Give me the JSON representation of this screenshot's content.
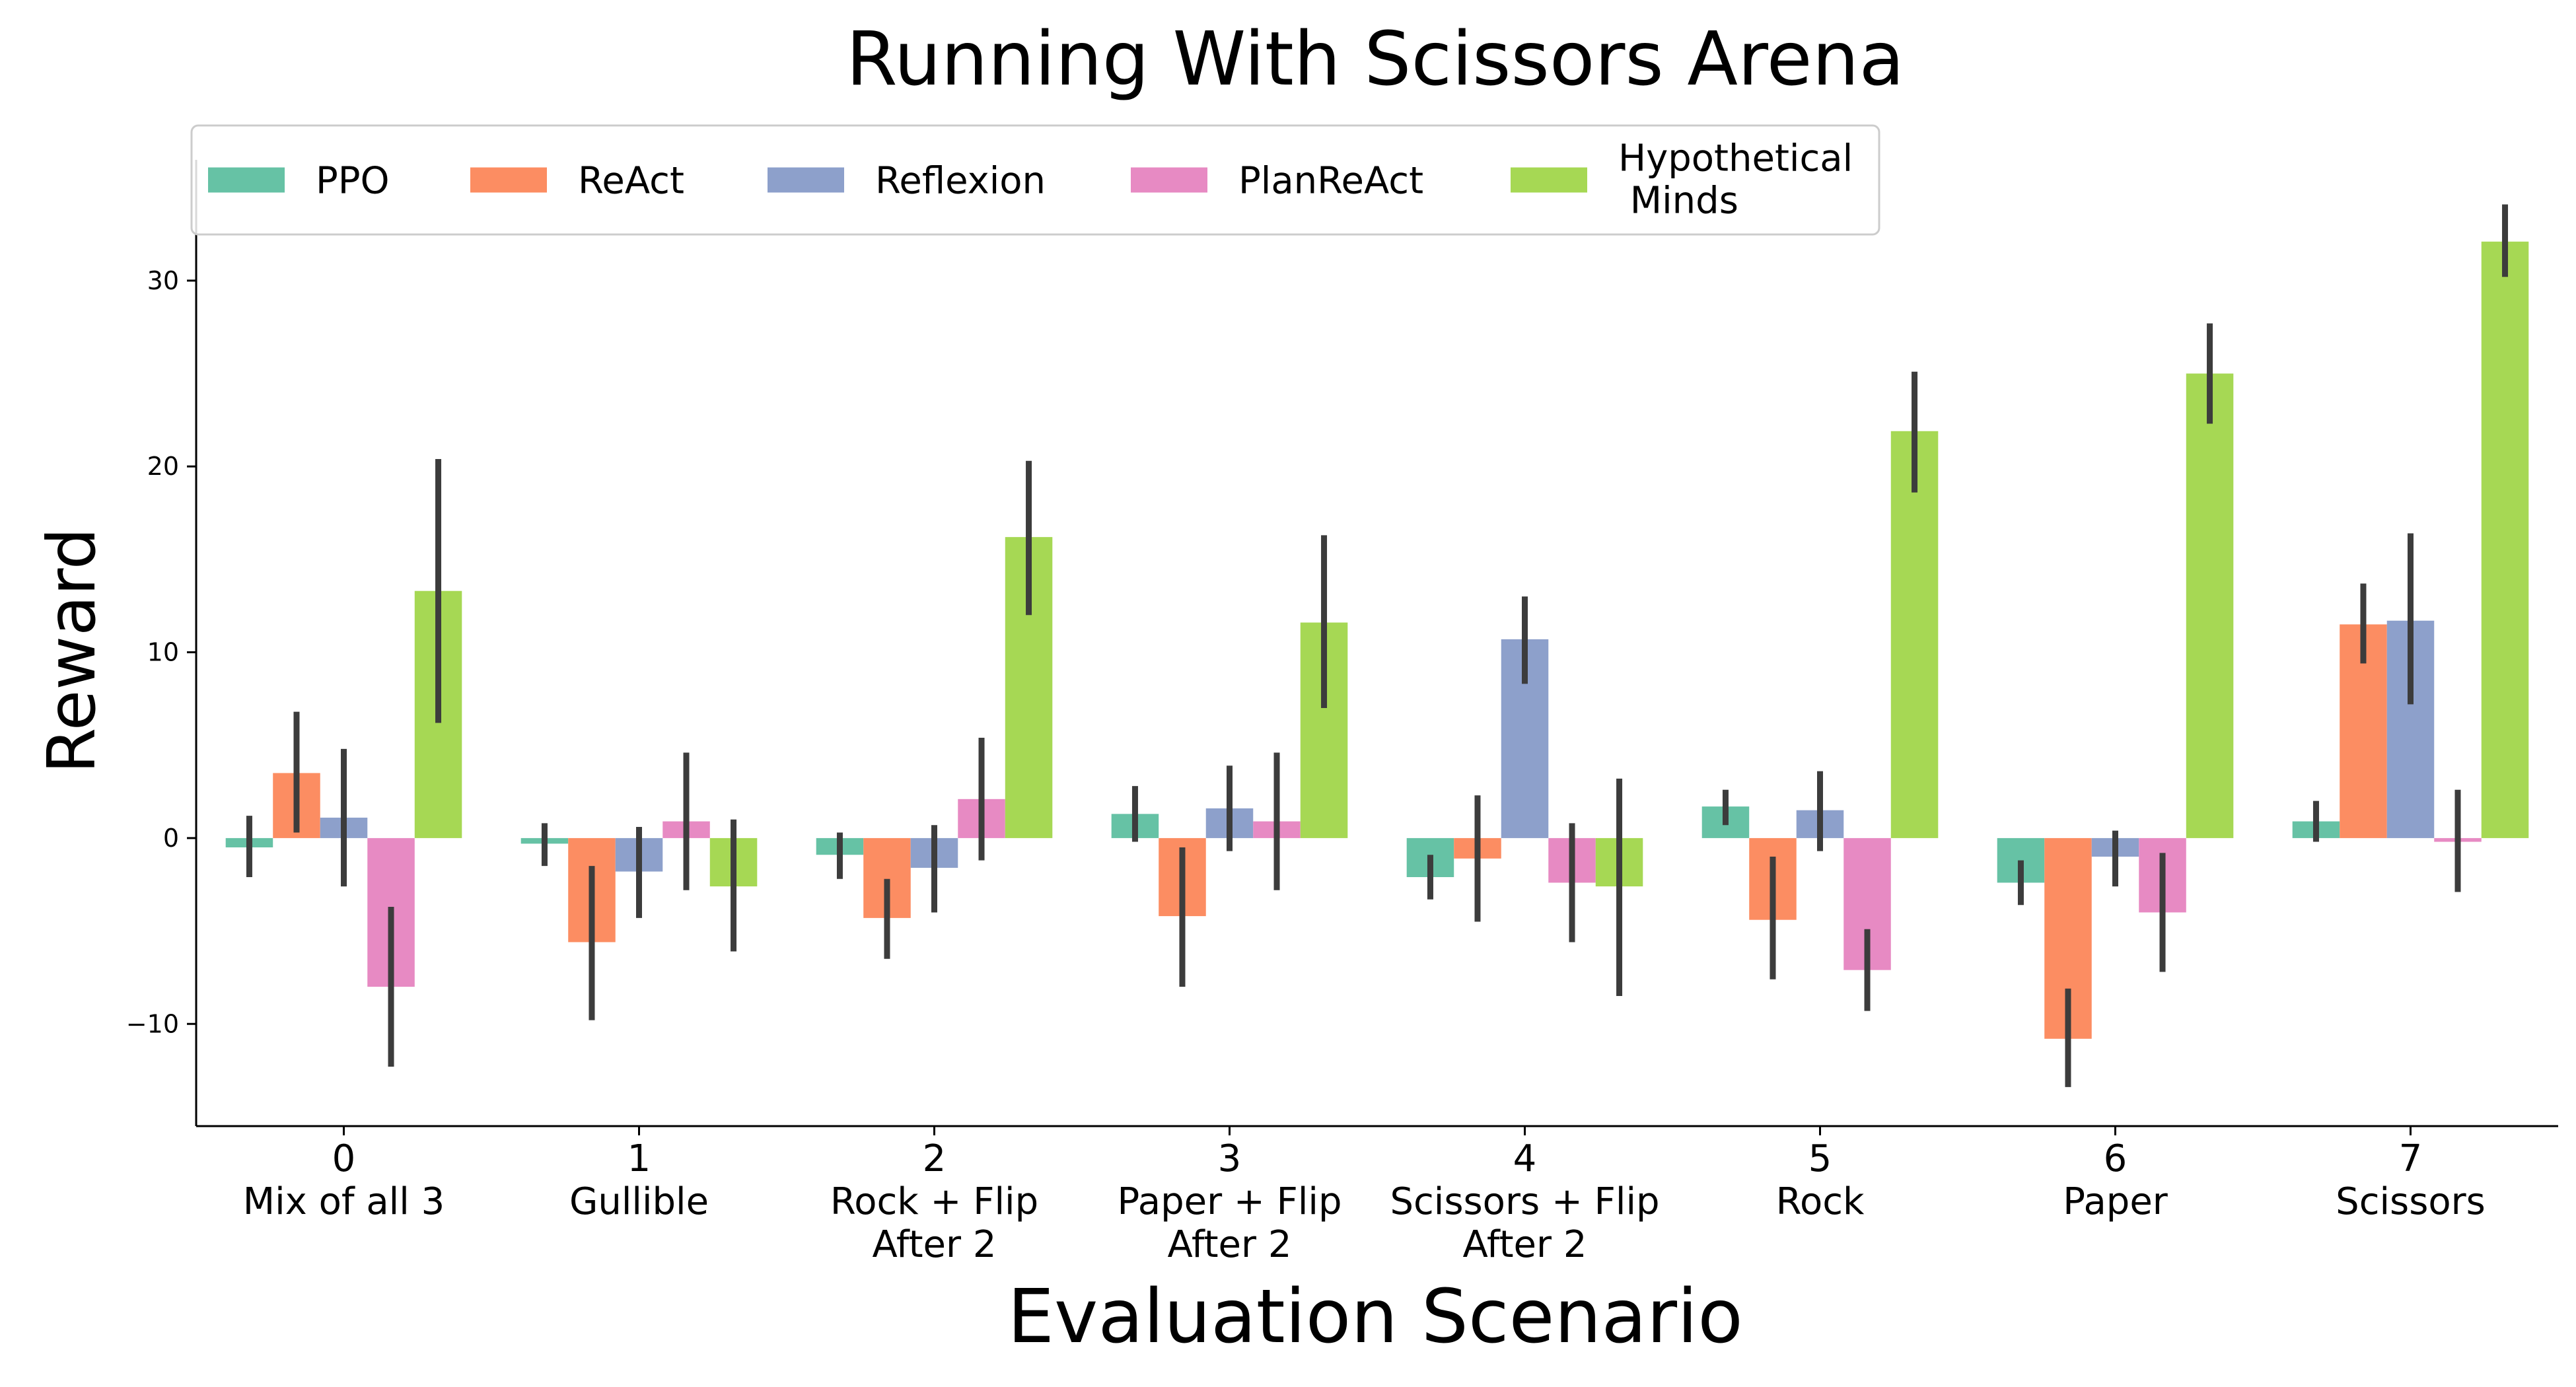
{
  "chart_data": {
    "type": "bar",
    "title": "Running With Scissors Arena",
    "xlabel": "Evaluation Scenario",
    "ylabel": "Reward",
    "ylim": [
      -15.5,
      36.5
    ],
    "yticks": [
      -10,
      0,
      10,
      20,
      30
    ],
    "grid": false,
    "legend": {
      "placement": "top",
      "columns": 5
    },
    "categories": [
      [
        "0",
        "Mix of all 3"
      ],
      [
        "1",
        "Gullible"
      ],
      [
        "2",
        "Rock + Flip",
        "After 2"
      ],
      [
        "3",
        "Paper + Flip",
        "After 2"
      ],
      [
        "4",
        "Scissors + Flip",
        "After 2"
      ],
      [
        "5",
        "Rock"
      ],
      [
        "6",
        "Paper"
      ],
      [
        "7",
        "Scissors"
      ]
    ],
    "series": [
      {
        "name": "PPO",
        "color": "#66c2a5",
        "values": [
          -0.5,
          -0.3,
          -0.9,
          1.3,
          -2.1,
          1.7,
          -2.4,
          0.9
        ],
        "err_low": [
          -2.1,
          -1.5,
          -2.2,
          -0.2,
          -3.3,
          0.7,
          -3.6,
          -0.2
        ],
        "err_high": [
          1.2,
          0.8,
          0.3,
          2.8,
          -0.9,
          2.6,
          -1.2,
          2.0
        ]
      },
      {
        "name": "ReAct",
        "color": "#fc8d62",
        "values": [
          3.5,
          -5.6,
          -4.3,
          -4.2,
          -1.1,
          -4.4,
          -10.8,
          11.5
        ],
        "err_low": [
          0.3,
          -9.8,
          -6.5,
          -8.0,
          -4.5,
          -7.6,
          -13.4,
          9.4
        ],
        "err_high": [
          6.8,
          -1.5,
          -2.2,
          -0.5,
          2.3,
          -1.0,
          -8.1,
          13.7
        ]
      },
      {
        "name": "Reflexion",
        "color": "#8da0cb",
        "values": [
          1.1,
          -1.8,
          -1.6,
          1.6,
          10.7,
          1.5,
          -1.0,
          11.7
        ],
        "err_low": [
          -2.6,
          -4.3,
          -4.0,
          -0.7,
          8.3,
          -0.7,
          -2.6,
          7.2
        ],
        "err_high": [
          4.8,
          0.6,
          0.7,
          3.9,
          13.0,
          3.6,
          0.4,
          16.4
        ]
      },
      {
        "name": "PlanReAct",
        "color": "#e78ac3",
        "values": [
          -8.0,
          0.9,
          2.1,
          0.9,
          -2.4,
          -7.1,
          -4.0,
          -0.2
        ],
        "err_low": [
          -12.3,
          -2.8,
          -1.2,
          -2.8,
          -5.6,
          -9.3,
          -7.2,
          -2.9
        ],
        "err_high": [
          -3.7,
          4.6,
          5.4,
          4.6,
          0.8,
          -4.9,
          -0.8,
          2.6
        ]
      },
      {
        "name": "Hypothetical\nMinds",
        "color": "#a6d854",
        "values": [
          13.3,
          -2.6,
          16.2,
          11.6,
          -2.6,
          21.9,
          25.0,
          32.1
        ],
        "err_low": [
          6.2,
          -6.1,
          12.0,
          7.0,
          -8.5,
          18.6,
          22.3,
          30.2
        ],
        "err_high": [
          20.4,
          1.0,
          20.3,
          16.3,
          3.2,
          25.1,
          27.7,
          34.1
        ]
      }
    ]
  }
}
